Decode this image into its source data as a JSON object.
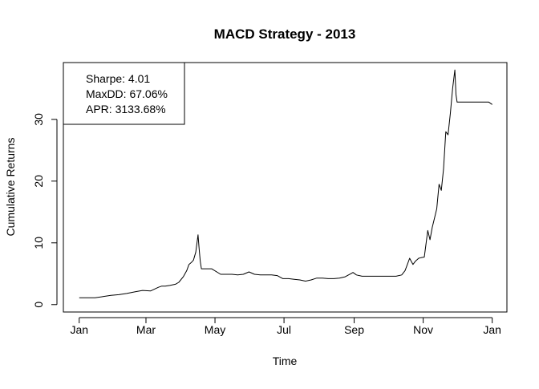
{
  "chart_data": {
    "type": "line",
    "title": "MACD Strategy - 2013",
    "xlabel": "Time",
    "ylabel": "Cumulative Returns",
    "x_ticks": [
      "Jan",
      "Mar",
      "May",
      "Jul",
      "Sep",
      "Nov",
      "Jan"
    ],
    "x_tick_days": [
      0,
      59,
      120,
      181,
      243,
      304,
      365
    ],
    "xlim_days": [
      -14,
      378
    ],
    "y_ticks": [
      0,
      10,
      20,
      30
    ],
    "ylim": [
      -1.2,
      39.2
    ],
    "grid": false,
    "legend": {
      "placement": "top-left",
      "lines": [
        "Sharpe: 4.01",
        "MaxDD: 67.06%",
        "APR: 3133.68%"
      ]
    },
    "series": [
      {
        "color": "#000000",
        "x_days": [
          0,
          14,
          21,
          28,
          35,
          42,
          50,
          56,
          63,
          70,
          73,
          76,
          80,
          85,
          88,
          92,
          95,
          97,
          99,
          101,
          103,
          105,
          106,
          107,
          108,
          110,
          117,
          125,
          130,
          135,
          140,
          145,
          150,
          155,
          160,
          165,
          170,
          175,
          180,
          185,
          190,
          195,
          200,
          205,
          210,
          215,
          220,
          225,
          230,
          235,
          240,
          242,
          245,
          250,
          260,
          270,
          280,
          285,
          288,
          290,
          292,
          295,
          297,
          300,
          302,
          305,
          308,
          310,
          312,
          314,
          316,
          318,
          320,
          322,
          324,
          326,
          328,
          330,
          332,
          333,
          334,
          335,
          336,
          337,
          338,
          340,
          345,
          350,
          355,
          360,
          362,
          365
        ],
        "values": [
          1.1,
          1.1,
          1.3,
          1.5,
          1.6,
          1.8,
          2.1,
          2.3,
          2.2,
          2.8,
          3.0,
          3.0,
          3.1,
          3.3,
          3.6,
          4.5,
          5.5,
          6.5,
          6.8,
          7.2,
          8.5,
          11.3,
          9.0,
          7.0,
          5.8,
          5.8,
          5.8,
          4.9,
          4.9,
          4.9,
          4.8,
          4.9,
          5.3,
          4.9,
          4.8,
          4.8,
          4.8,
          4.7,
          4.2,
          4.2,
          4.1,
          4.0,
          3.8,
          4.0,
          4.3,
          4.3,
          4.2,
          4.2,
          4.3,
          4.5,
          5.0,
          5.2,
          4.8,
          4.6,
          4.6,
          4.6,
          4.6,
          4.8,
          5.5,
          6.5,
          7.5,
          6.5,
          7.0,
          7.5,
          7.6,
          7.7,
          12.0,
          10.5,
          12.5,
          14.0,
          15.5,
          19.5,
          18.5,
          22.0,
          28.0,
          27.5,
          31.0,
          35.0,
          38.0,
          34.0,
          32.8,
          32.8,
          32.8,
          32.8,
          32.8,
          32.8,
          32.8,
          32.8,
          32.8,
          32.8,
          32.8,
          32.4
        ]
      }
    ]
  }
}
